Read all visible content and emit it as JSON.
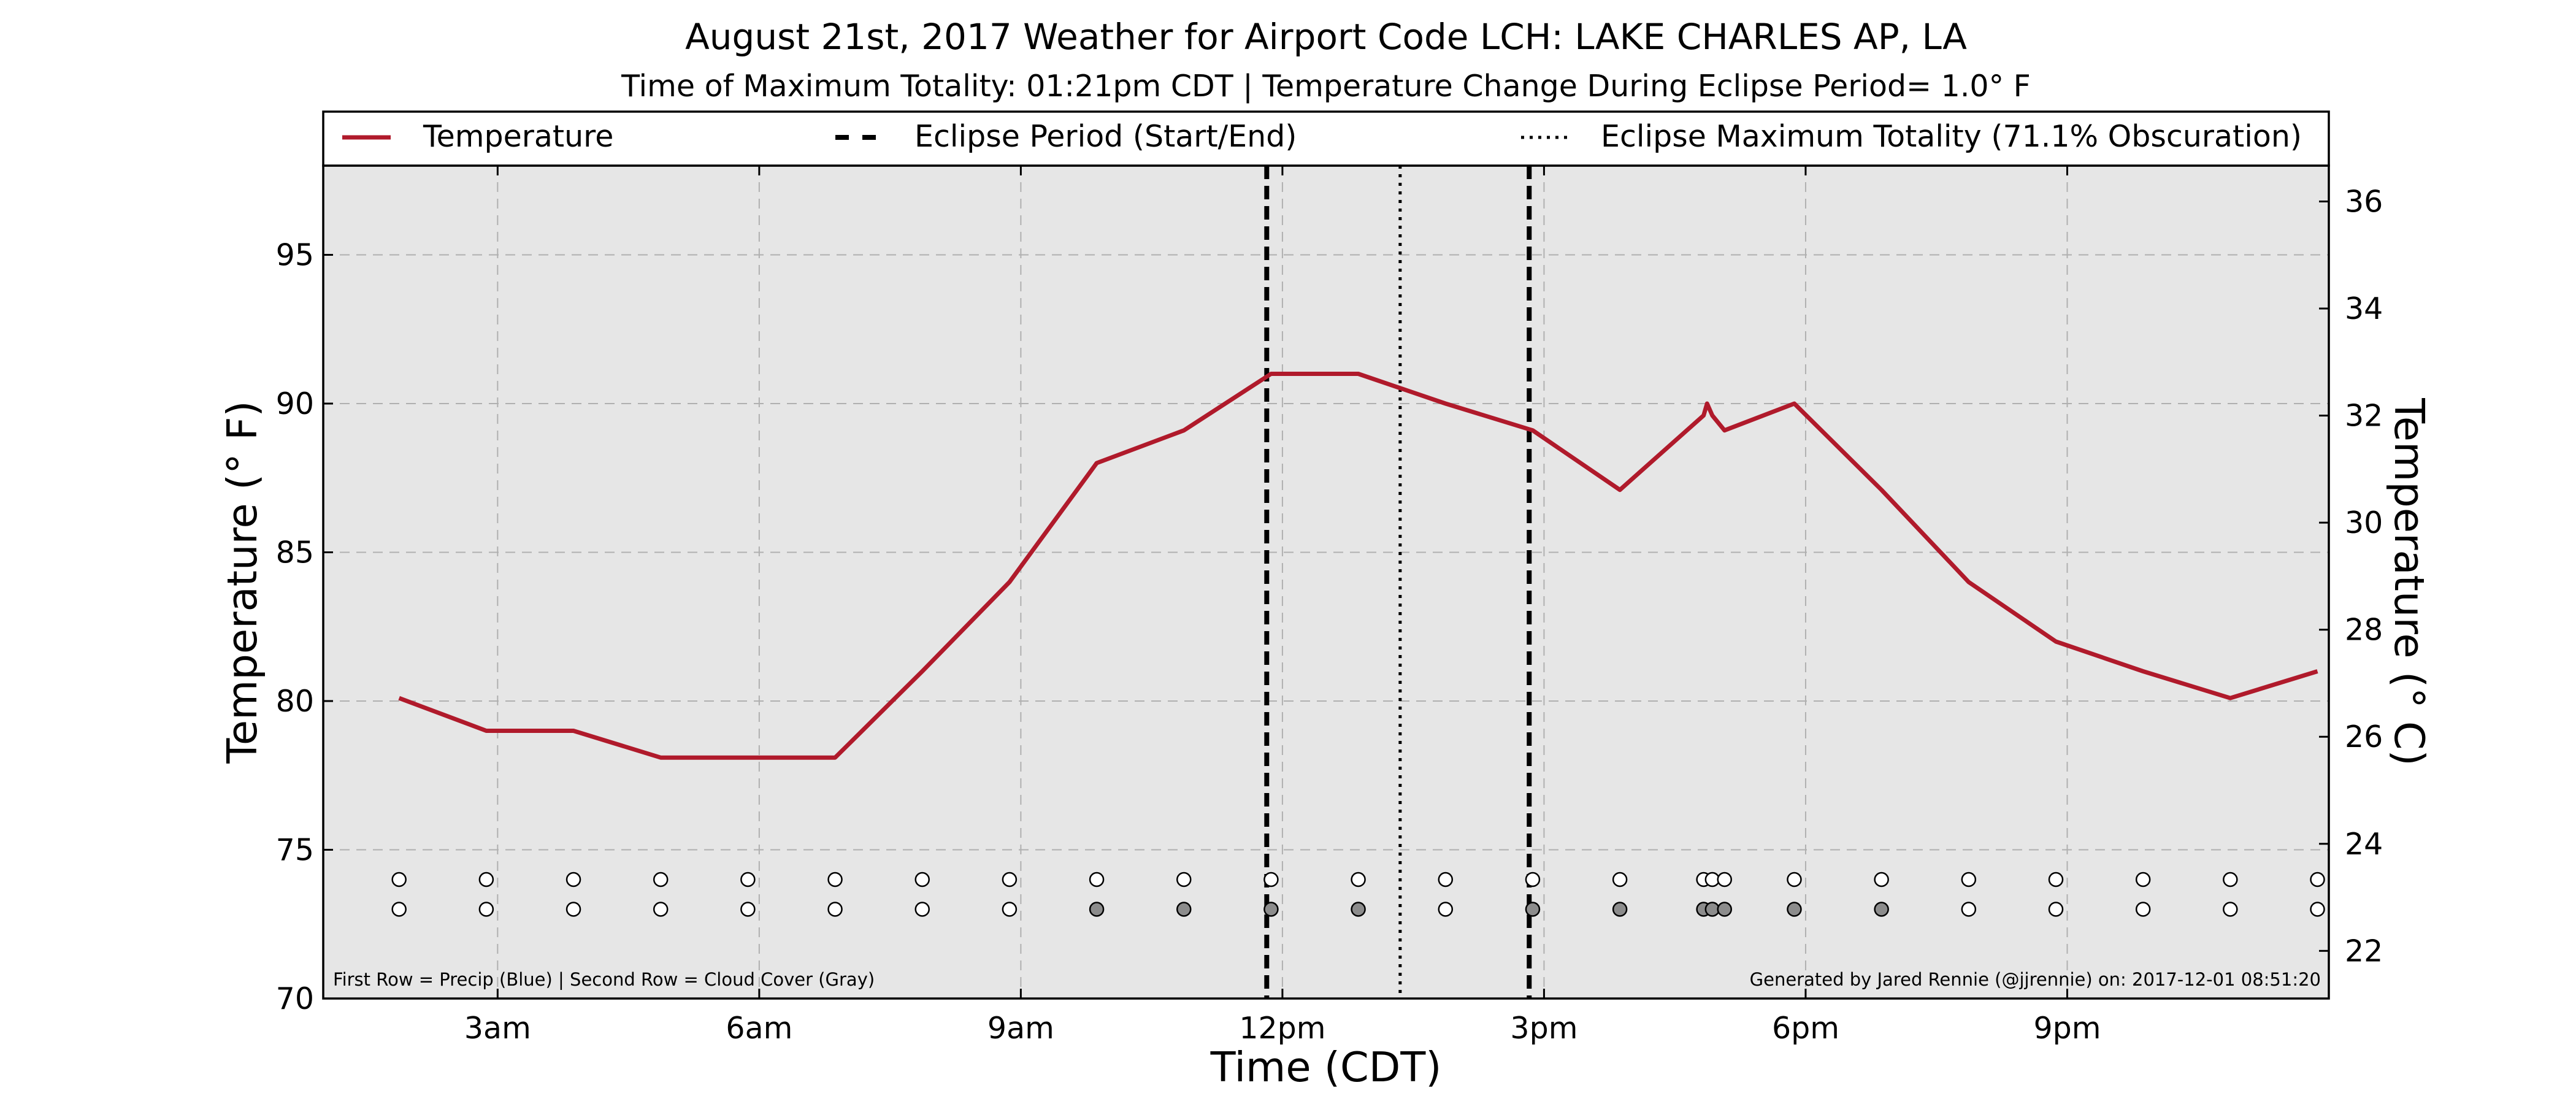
{
  "chart_data": {
    "type": "line",
    "title": "August 21st, 2017 Weather for Airport Code LCH: LAKE CHARLES AP, LA",
    "subtitle": "Time of Maximum Totality: 01:21pm CDT | Temperature Change During Eclipse Period= 1.0° F",
    "xlabel": "Time (CDT)",
    "ylabel": "Temperature (° F)",
    "y2label": "Temperature (° C)",
    "xlim_hours": [
      1.0,
      24.0
    ],
    "ylim": [
      70,
      98
    ],
    "y2lim": [
      21.11,
      36.67
    ],
    "x_ticks": [
      {
        "hour": 3,
        "label": "3am"
      },
      {
        "hour": 6,
        "label": "6am"
      },
      {
        "hour": 9,
        "label": "9am"
      },
      {
        "hour": 12,
        "label": "12pm"
      },
      {
        "hour": 15,
        "label": "3pm"
      },
      {
        "hour": 18,
        "label": "6pm"
      },
      {
        "hour": 21,
        "label": "9pm"
      }
    ],
    "y_ticks": [
      {
        "value": 70,
        "label": "70"
      },
      {
        "value": 75,
        "label": "75"
      },
      {
        "value": 80,
        "label": "80"
      },
      {
        "value": 85,
        "label": "85"
      },
      {
        "value": 90,
        "label": "90"
      },
      {
        "value": 95,
        "label": "95"
      }
    ],
    "y2_ticks": [
      {
        "value": 22,
        "label": "22"
      },
      {
        "value": 24,
        "label": "24"
      },
      {
        "value": 26,
        "label": "26"
      },
      {
        "value": 28,
        "label": "28"
      },
      {
        "value": 30,
        "label": "30"
      },
      {
        "value": 32,
        "label": "32"
      },
      {
        "value": 34,
        "label": "34"
      },
      {
        "value": 36,
        "label": "36"
      }
    ],
    "grid": true,
    "legend_position": "top",
    "legend": {
      "temperature": "Temperature",
      "eclipse_period": "Eclipse Period (Start/End)",
      "max_totality": "Eclipse Maximum Totality (71.1% Obscuration)"
    },
    "series": [
      {
        "name": "Temperature",
        "color": "#b01a2b",
        "points": [
          {
            "x": 1.87,
            "y": 80.1
          },
          {
            "x": 2.87,
            "y": 79.0
          },
          {
            "x": 3.87,
            "y": 79.0
          },
          {
            "x": 4.87,
            "y": 78.1
          },
          {
            "x": 5.87,
            "y": 78.1
          },
          {
            "x": 6.87,
            "y": 78.1
          },
          {
            "x": 7.87,
            "y": 81.0
          },
          {
            "x": 8.87,
            "y": 84.0
          },
          {
            "x": 9.87,
            "y": 88.0
          },
          {
            "x": 10.87,
            "y": 89.1
          },
          {
            "x": 11.87,
            "y": 91.0
          },
          {
            "x": 12.87,
            "y": 91.0
          },
          {
            "x": 13.87,
            "y": 90.0
          },
          {
            "x": 14.87,
            "y": 89.1
          },
          {
            "x": 15.87,
            "y": 87.1
          },
          {
            "x": 16.83,
            "y": 89.6
          },
          {
            "x": 16.87,
            "y": 90.0
          },
          {
            "x": 16.93,
            "y": 89.6
          },
          {
            "x": 17.07,
            "y": 89.1
          },
          {
            "x": 17.87,
            "y": 90.0
          },
          {
            "x": 18.87,
            "y": 87.1
          },
          {
            "x": 19.87,
            "y": 84.0
          },
          {
            "x": 20.87,
            "y": 82.0
          },
          {
            "x": 21.87,
            "y": 81.0
          },
          {
            "x": 22.87,
            "y": 80.1
          },
          {
            "x": 23.87,
            "y": 81.0
          }
        ]
      }
    ],
    "eclipse_start_hour": 11.82,
    "eclipse_end_hour": 14.83,
    "max_totality_hour": 13.35,
    "precip_row": {
      "y": 74.0,
      "hours": [
        1.87,
        2.87,
        3.87,
        4.87,
        5.87,
        6.87,
        7.87,
        8.87,
        9.87,
        10.87,
        11.87,
        12.87,
        13.87,
        14.87,
        15.87,
        16.83,
        16.93,
        17.07,
        17.87,
        18.87,
        19.87,
        20.87,
        21.87,
        22.87,
        23.87
      ],
      "values": [
        0,
        0,
        0,
        0,
        0,
        0,
        0,
        0,
        0,
        0,
        0,
        0,
        0,
        0,
        0,
        0,
        0,
        0,
        0,
        0,
        0,
        0,
        0,
        0,
        0
      ]
    },
    "cloud_row": {
      "y": 73.0,
      "hours": [
        1.87,
        2.87,
        3.87,
        4.87,
        5.87,
        6.87,
        7.87,
        8.87,
        9.87,
        10.87,
        11.87,
        12.87,
        13.87,
        14.87,
        15.87,
        16.83,
        16.93,
        17.07,
        17.87,
        18.87,
        19.87,
        20.87,
        21.87,
        22.87,
        23.87
      ],
      "cover": [
        0,
        0,
        0,
        0,
        0,
        0,
        0,
        0,
        1,
        1,
        1,
        1,
        0,
        1,
        1,
        1,
        1,
        1,
        1,
        1,
        0,
        0,
        0,
        0,
        0
      ]
    },
    "footnote_left": "First Row = Precip (Blue) | Second Row = Cloud Cover (Gray)",
    "footnote_right": "Generated by Jared Rennie (@jjrennie) on: 2017-12-01 08:51:20"
  },
  "colors": {
    "plot_background": "#e6e6e6",
    "line": "#b01a2b",
    "grid": "#b0b0b0",
    "cloud_fill": "#8c8c8c",
    "clear_fill": "#ffffff"
  }
}
